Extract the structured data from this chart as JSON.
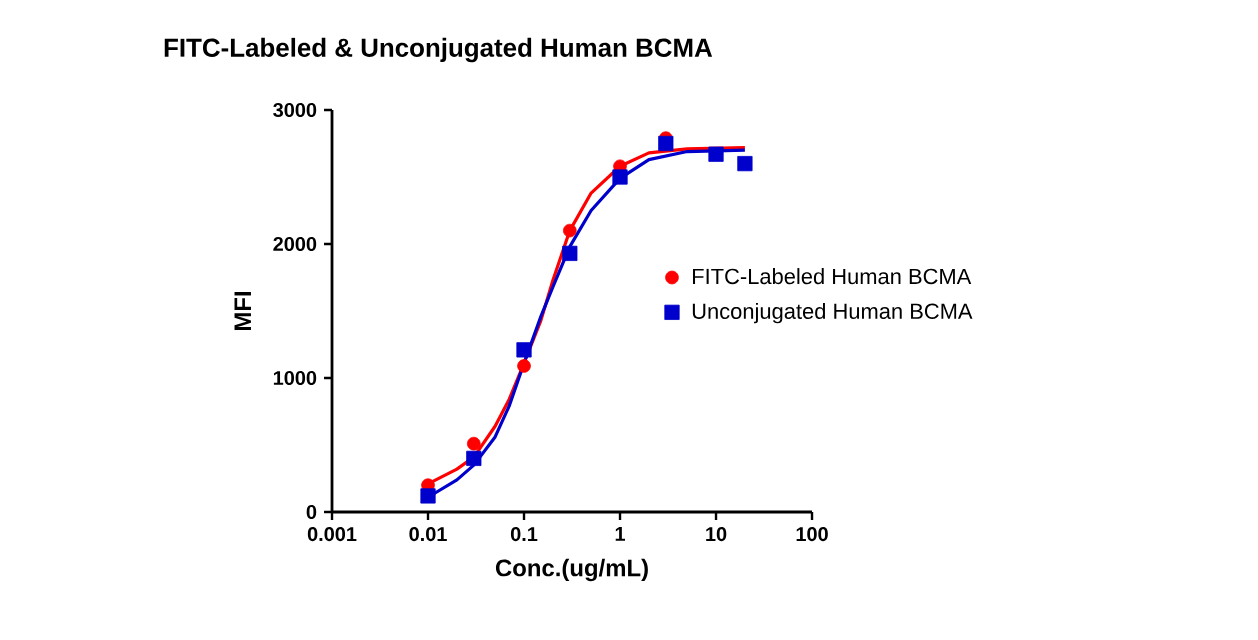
{
  "chart_data": {
    "type": "scatter",
    "title": "FITC-Labeled & Unconjugated Human BCMA",
    "xlabel": "Conc.(ug/mL)",
    "ylabel": "MFI",
    "log": "x",
    "xlim": [
      0.001,
      100
    ],
    "xticks": [
      0.001,
      0.01,
      0.1,
      1,
      10,
      100
    ],
    "ylim": [
      0,
      3000
    ],
    "yticks": [
      0,
      1000,
      2000,
      3000
    ],
    "legend": "right",
    "series": [
      {
        "name": "FITC-Labeled Human BCMA",
        "marker": "circle",
        "color": "#ff0000",
        "x": [
          0.01,
          0.03,
          0.1,
          0.3,
          1,
          3
        ],
        "values": [
          200,
          510,
          1090,
          2100,
          2580,
          2790
        ]
      },
      {
        "name": "Unconjugated Human BCMA",
        "marker": "square",
        "color": "#0000cc",
        "x": [
          0.01,
          0.03,
          0.1,
          0.3,
          1,
          3,
          10,
          20
        ],
        "values": [
          120,
          400,
          1210,
          1930,
          2500,
          2750,
          2670,
          2600
        ]
      },
      {
        "type": "line",
        "marker": "none",
        "line_style": "solid",
        "color": "#ff0000",
        "x": [
          0.01,
          0.02,
          0.03,
          0.05,
          0.07,
          0.1,
          0.15,
          0.2,
          0.3,
          0.5,
          1,
          2,
          5,
          20
        ],
        "values": [
          210,
          320,
          410,
          640,
          840,
          1110,
          1430,
          1730,
          2100,
          2380,
          2580,
          2680,
          2710,
          2720
        ]
      },
      {
        "type": "line",
        "marker": "none",
        "line_style": "solid",
        "color": "#0000cc",
        "x": [
          0.01,
          0.02,
          0.03,
          0.05,
          0.07,
          0.1,
          0.15,
          0.2,
          0.3,
          0.5,
          1,
          2,
          5,
          20
        ],
        "values": [
          110,
          240,
          350,
          560,
          790,
          1110,
          1460,
          1680,
          1980,
          2250,
          2490,
          2630,
          2690,
          2700
        ]
      }
    ]
  }
}
